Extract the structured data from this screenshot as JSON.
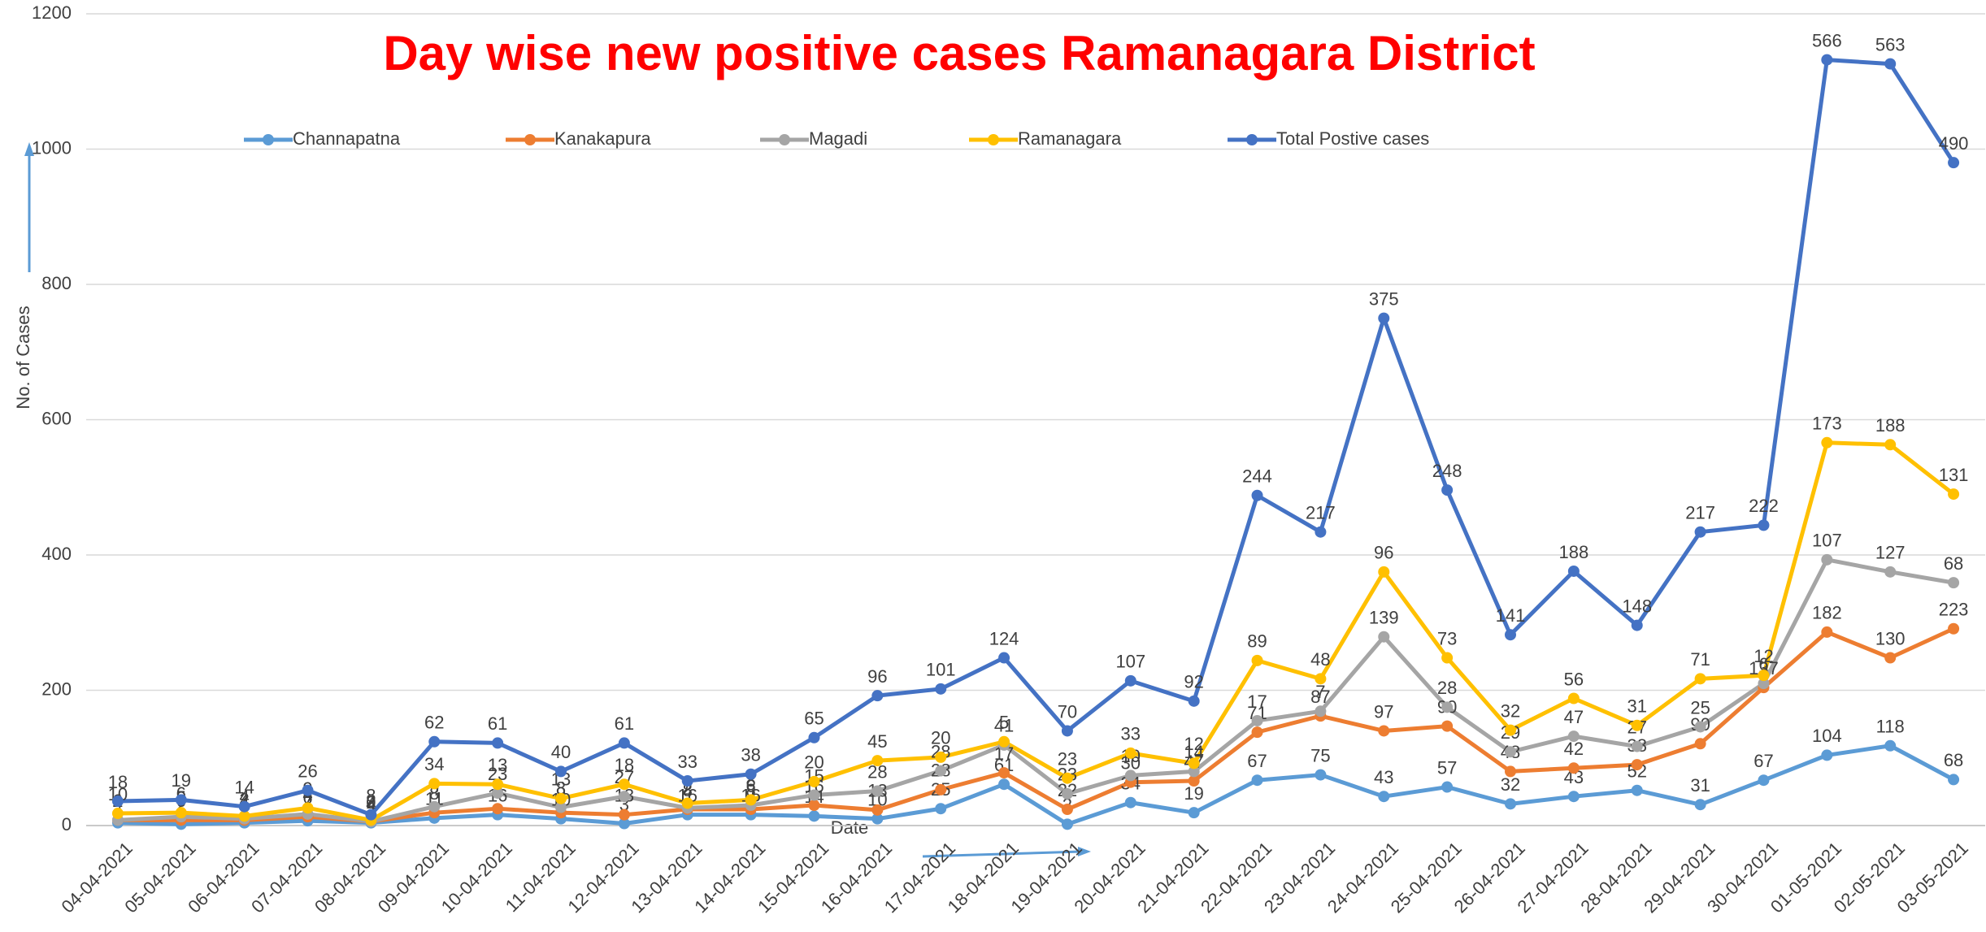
{
  "chart_data": {
    "type": "line",
    "stacked": true,
    "title": "Day wise new positive cases Ramanagara District",
    "x_label": "Date",
    "y_label": "No. of Cases",
    "categories": [
      "04-04-2021",
      "05-04-2021",
      "06-04-2021",
      "07-04-2021",
      "08-04-2021",
      "09-04-2021",
      "10-04-2021",
      "11-04-2021",
      "12-04-2021",
      "13-04-2021",
      "14-04-2021",
      "15-04-2021",
      "16-04-2021",
      "17-04-2021",
      "18-04-2021",
      "19-04-2021",
      "20-04-2021",
      "21-04-2021",
      "22-04-2021",
      "23-04-2021",
      "24-04-2021",
      "25-04-2021",
      "26-04-2021",
      "27-04-2021",
      "28-04-2021",
      "29-04-2021",
      "30-04-2021",
      "01-05-2021",
      "02-05-2021",
      "03-05-2021"
    ],
    "series": [
      {
        "name": "Channapatna",
        "color": "#5b9bd5",
        "values": [
          4,
          2,
          4,
          7,
          4,
          11,
          16,
          10,
          3,
          16,
          16,
          14,
          10,
          25,
          61,
          2,
          34,
          19,
          67,
          75,
          43,
          57,
          32,
          43,
          52,
          31,
          67,
          104,
          118,
          68
        ]
      },
      {
        "name": "Kanakapura",
        "color": "#ed7d31",
        "values": [
          4,
          6,
          4,
          6,
          2,
          8,
          9,
          9,
          13,
          8,
          8,
          16,
          13,
          28,
          17,
          22,
          30,
          47,
          71,
          87,
          97,
          90,
          48,
          42,
          38,
          90,
          137,
          182,
          130,
          223
        ]
      },
      {
        "name": "Magadi",
        "color": "#a5a5a5",
        "values": [
          0,
          5,
          2,
          4,
          0,
          9,
          23,
          8,
          27,
          2,
          6,
          15,
          28,
          28,
          41,
          23,
          10,
          14,
          17,
          7,
          139,
          28,
          29,
          47,
          27,
          25,
          6,
          107,
          127,
          68
        ]
      },
      {
        "name": "Ramanagara",
        "color": "#ffc000",
        "values": [
          10,
          6,
          4,
          9,
          2,
          34,
          13,
          13,
          18,
          7,
          8,
          20,
          45,
          20,
          5,
          23,
          33,
          12,
          89,
          48,
          96,
          73,
          32,
          56,
          31,
          71,
          12,
          173,
          188,
          131
        ]
      },
      {
        "name": "Total Postive cases",
        "color": "#4472c4",
        "values": [
          18,
          19,
          14,
          26,
          8,
          62,
          61,
          40,
          61,
          33,
          38,
          65,
          96,
          101,
          124,
          70,
          107,
          92,
          244,
          217,
          375,
          248,
          141,
          188,
          148,
          217,
          222,
          566,
          563,
          490
        ]
      }
    ],
    "ylim": [
      0,
      1200
    ],
    "yticks": [
      0,
      200,
      400,
      600,
      800,
      1000,
      1200
    ],
    "grid": true
  }
}
